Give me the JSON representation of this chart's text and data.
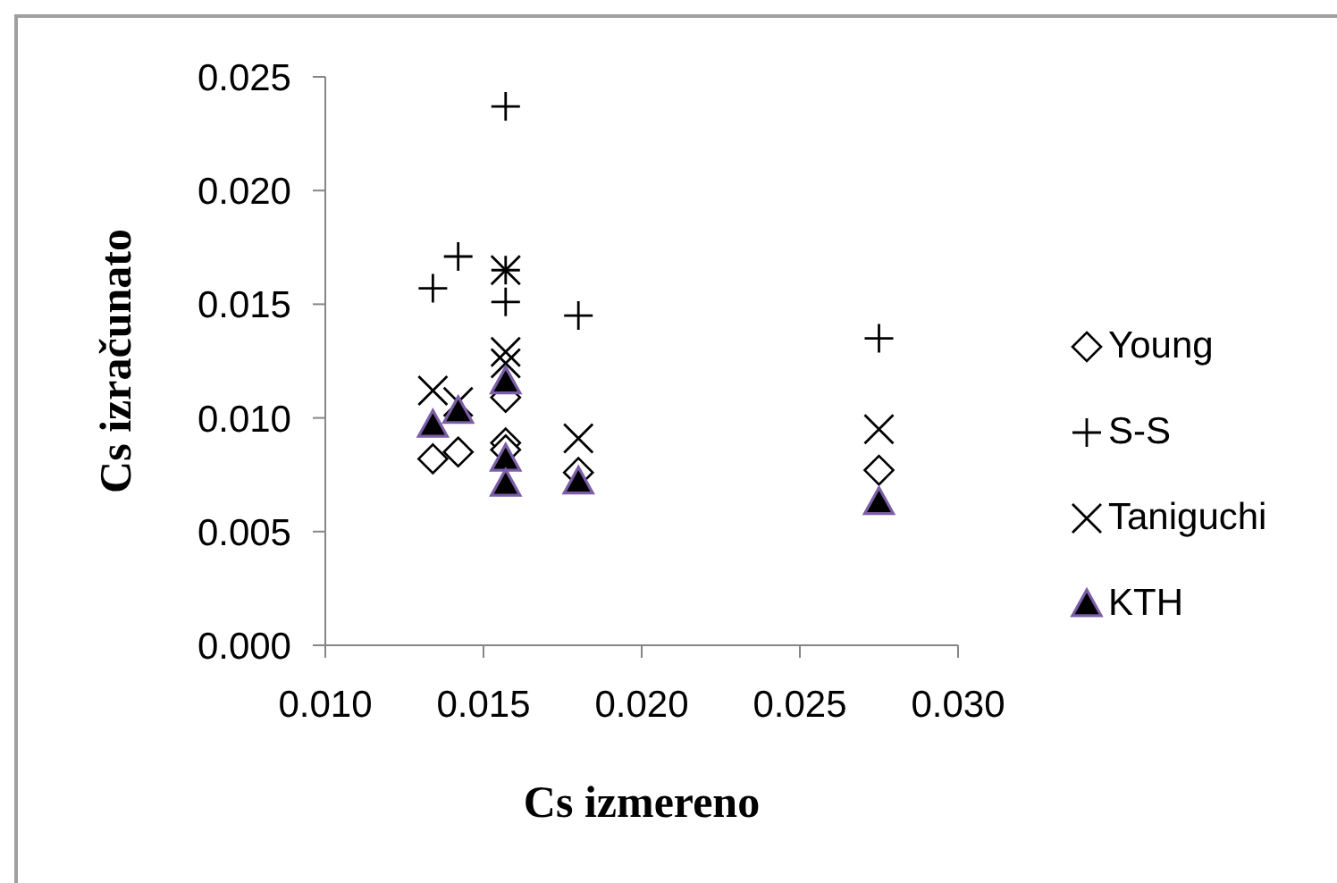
{
  "chart_data": {
    "type": "scatter",
    "xlabel": "Cs izmereno",
    "ylabel": "Cs izračunato",
    "x": [
      0.0134,
      0.0142,
      0.0157,
      0.0157,
      0.0157,
      0.018,
      0.0275
    ],
    "xlim": [
      0.01,
      0.03
    ],
    "xticks": [
      {
        "value": 0.01,
        "label": "0.010"
      },
      {
        "value": 0.015,
        "label": "0.015"
      },
      {
        "value": 0.02,
        "label": "0.020"
      },
      {
        "value": 0.025,
        "label": "0.025"
      },
      {
        "value": 0.03,
        "label": "0.030"
      }
    ],
    "ylim": [
      0,
      0.025
    ],
    "yticks": [
      {
        "value": 0,
        "label": "0.000"
      },
      {
        "value": 0.005,
        "label": "0.005"
      },
      {
        "value": 0.01,
        "label": "0.010"
      },
      {
        "value": 0.015,
        "label": "0.015"
      },
      {
        "value": 0.02,
        "label": "0.020"
      },
      {
        "value": 0.025,
        "label": "0.025"
      }
    ],
    "legend": "right",
    "grid": false,
    "series": [
      {
        "name": "Young",
        "color": "#000000",
        "marker": "diamond",
        "values": [
          0.0082,
          0.0085,
          0.0109,
          0.0089,
          0.0086,
          0.0076,
          0.0077
        ]
      },
      {
        "name": "S-S",
        "color": "#000000",
        "marker": "cross",
        "values": [
          0.0157,
          0.0171,
          0.0237,
          0.0165,
          0.0151,
          0.0145,
          0.0135
        ]
      },
      {
        "name": "Taniguchi",
        "color": "#000000",
        "marker": "x",
        "values": [
          0.0112,
          0.0107,
          0.0165,
          0.0129,
          0.0124,
          0.0091,
          0.0095
        ]
      },
      {
        "name": "KTH",
        "color": "#000000",
        "marker": "triangle",
        "values": [
          0.0097,
          0.0103,
          0.0116,
          0.0082,
          0.0071,
          0.0072,
          0.0063
        ]
      }
    ]
  }
}
